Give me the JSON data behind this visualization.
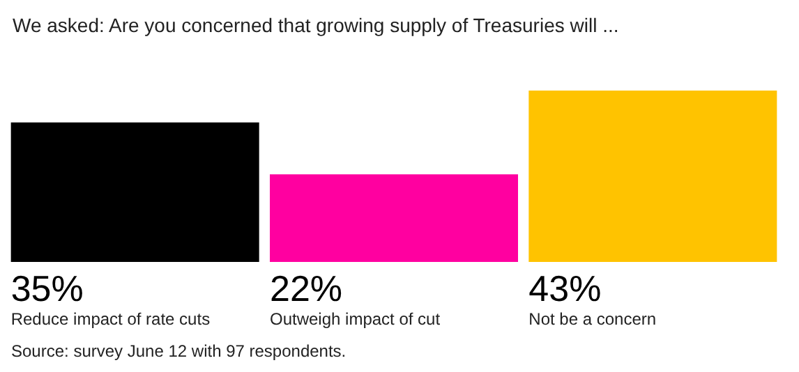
{
  "chart_data": {
    "type": "bar",
    "title": "We asked: Are you concerned that growing supply of Treasuries will ...",
    "categories": [
      "Reduce impact of rate cuts",
      "Outweigh impact of cut",
      "Not be a concern"
    ],
    "values": [
      35,
      22,
      43
    ],
    "colors": [
      "#000000",
      "#ff00a0",
      "#ffc300"
    ],
    "value_labels": [
      "35%",
      "22%",
      "43%"
    ],
    "annotations": [
      "Source: survey June 12 with 97 respondents."
    ]
  }
}
